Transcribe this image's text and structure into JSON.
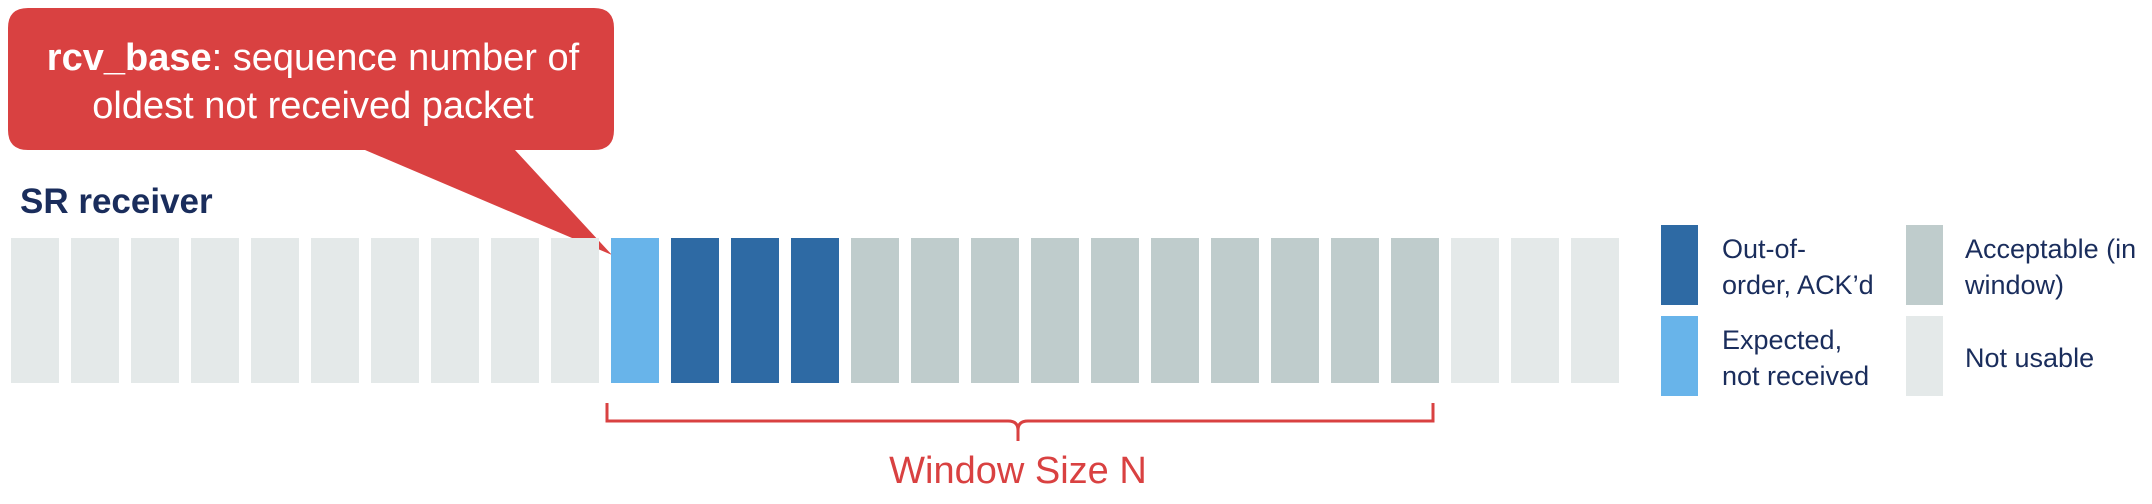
{
  "callout": {
    "bold_term": "rcv_base",
    "line1_rest": ": sequence number of",
    "line2": "oldest not received packet"
  },
  "heading": "SR receiver",
  "packets": [
    "not_usable",
    "not_usable",
    "not_usable",
    "not_usable",
    "not_usable",
    "not_usable",
    "not_usable",
    "not_usable",
    "not_usable",
    "not_usable",
    "expected",
    "out_of_order",
    "out_of_order",
    "out_of_order",
    "acceptable",
    "acceptable",
    "acceptable",
    "acceptable",
    "acceptable",
    "acceptable",
    "acceptable",
    "acceptable",
    "acceptable",
    "acceptable",
    "not_usable",
    "not_usable",
    "not_usable"
  ],
  "window_label": "Window Size N",
  "legend": [
    {
      "key": "out_of_order",
      "lines": [
        "Out-of-",
        "order, ACK’d"
      ]
    },
    {
      "key": "acceptable",
      "lines": [
        "Acceptable (in",
        "window)"
      ]
    },
    {
      "key": "expected",
      "lines": [
        "Expected,",
        "not received"
      ]
    },
    {
      "key": "not_usable",
      "lines": [
        "Not usable"
      ]
    }
  ],
  "colors": {
    "not_usable": "#e4e9e9",
    "expected": "#68b4ea",
    "out_of_order": "#2e6aa4",
    "acceptable": "#bfcccc",
    "callout": "#d94141",
    "heading": "#1a2d5c",
    "legend_text": "#1a2d5c",
    "window": "#d94141"
  }
}
